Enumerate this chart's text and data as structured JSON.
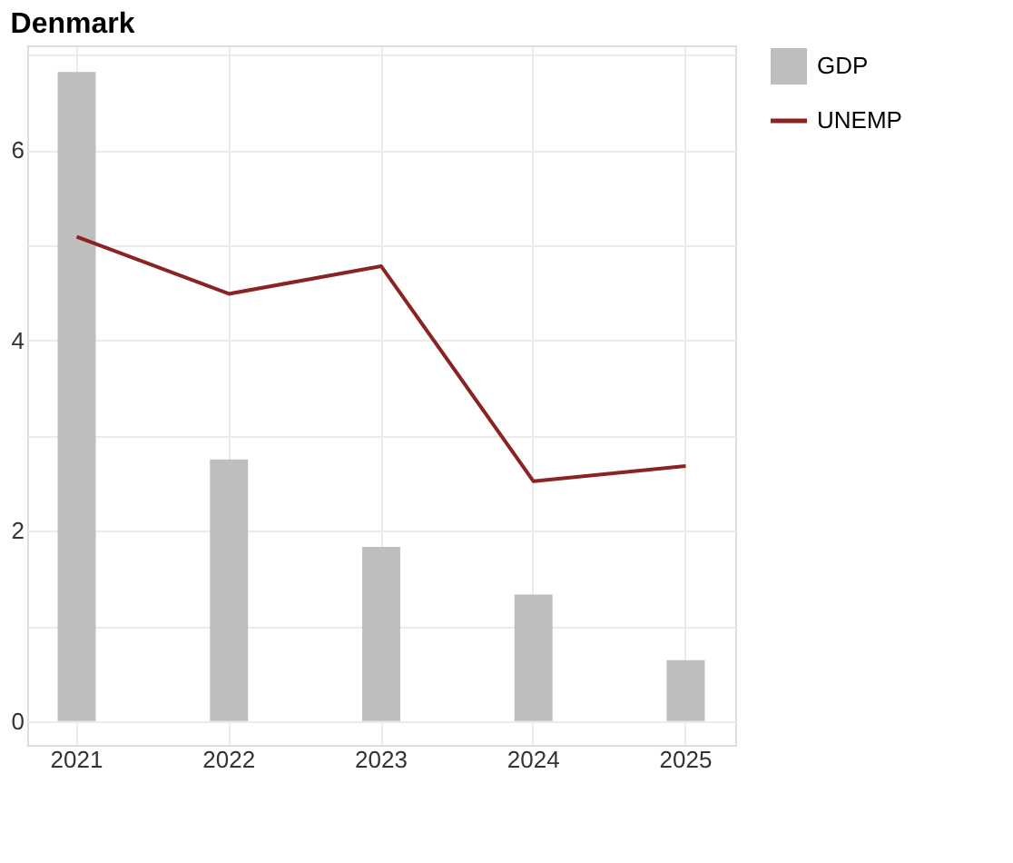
{
  "chart_data": {
    "type": "bar",
    "title": "Denmark",
    "categories": [
      "2021",
      "2022",
      "2023",
      "2024",
      "2025"
    ],
    "series": [
      {
        "name": "GDP",
        "color": "#bebebe",
        "values": [
          6.82,
          2.75,
          1.83,
          1.33,
          0.64
        ]
      },
      {
        "name": "UNEMP",
        "type": "line",
        "color": "#8b2323",
        "values": [
          5.09,
          4.49,
          4.78,
          2.52,
          2.68
        ]
      }
    ],
    "ylim": [
      -0.25,
      7.1
    ],
    "yticks": [
      0,
      {
        "value": 1,
        "label": null
      },
      2,
      {
        "value": 3,
        "label": null
      },
      4,
      {
        "value": 5,
        "label": null
      },
      6,
      {
        "value": 7,
        "label": null
      }
    ],
    "grid": true,
    "legend": "right"
  }
}
